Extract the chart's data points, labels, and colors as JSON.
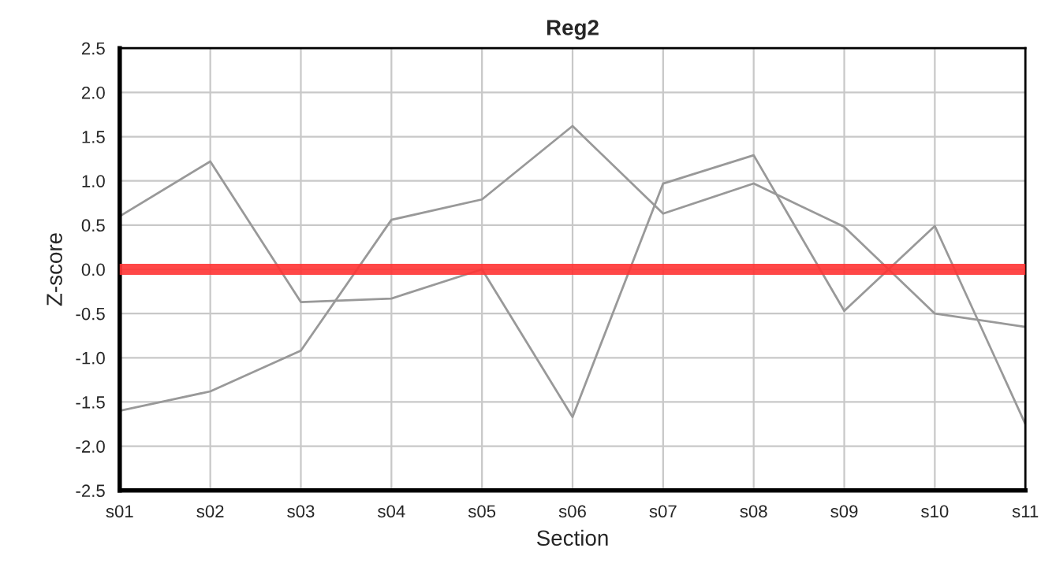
{
  "chart_data": {
    "type": "line",
    "title": "Reg2",
    "xlabel": "Section",
    "ylabel": "Z-score",
    "categories": [
      "s01",
      "s02",
      "s03",
      "s04",
      "s05",
      "s06",
      "s07",
      "s08",
      "s09",
      "s10",
      "s11"
    ],
    "series": [
      {
        "color": "#999999",
        "values": [
          0.6,
          1.22,
          -0.37,
          -0.33,
          0.0,
          -1.67,
          0.97,
          1.29,
          -0.47,
          0.49,
          -1.75
        ]
      },
      {
        "color": "#999999",
        "values": [
          -1.6,
          -1.38,
          -0.92,
          0.56,
          0.79,
          1.62,
          0.63,
          0.97,
          0.48,
          -0.5,
          -0.65
        ]
      }
    ],
    "ylim": [
      -2.5,
      2.5
    ],
    "yticks": [
      {
        "value": -2.5,
        "label": "-2.5"
      },
      {
        "value": -2.0,
        "label": "-2.0"
      },
      {
        "value": -1.5,
        "label": "-1.5"
      },
      {
        "value": -1.0,
        "label": "-1.0"
      },
      {
        "value": -0.5,
        "label": "-0.5"
      },
      {
        "value": 0.0,
        "label": "0.0"
      },
      {
        "value": 0.5,
        "label": "0.5"
      },
      {
        "value": 1.0,
        "label": "1.0"
      },
      {
        "value": 1.5,
        "label": "1.5"
      },
      {
        "value": 2.0,
        "label": "2.0"
      },
      {
        "value": 2.5,
        "label": "2.5"
      }
    ],
    "ref_lines": [
      {
        "axis": "y",
        "value": 0,
        "color": "#ff3333"
      }
    ],
    "grid": true
  }
}
